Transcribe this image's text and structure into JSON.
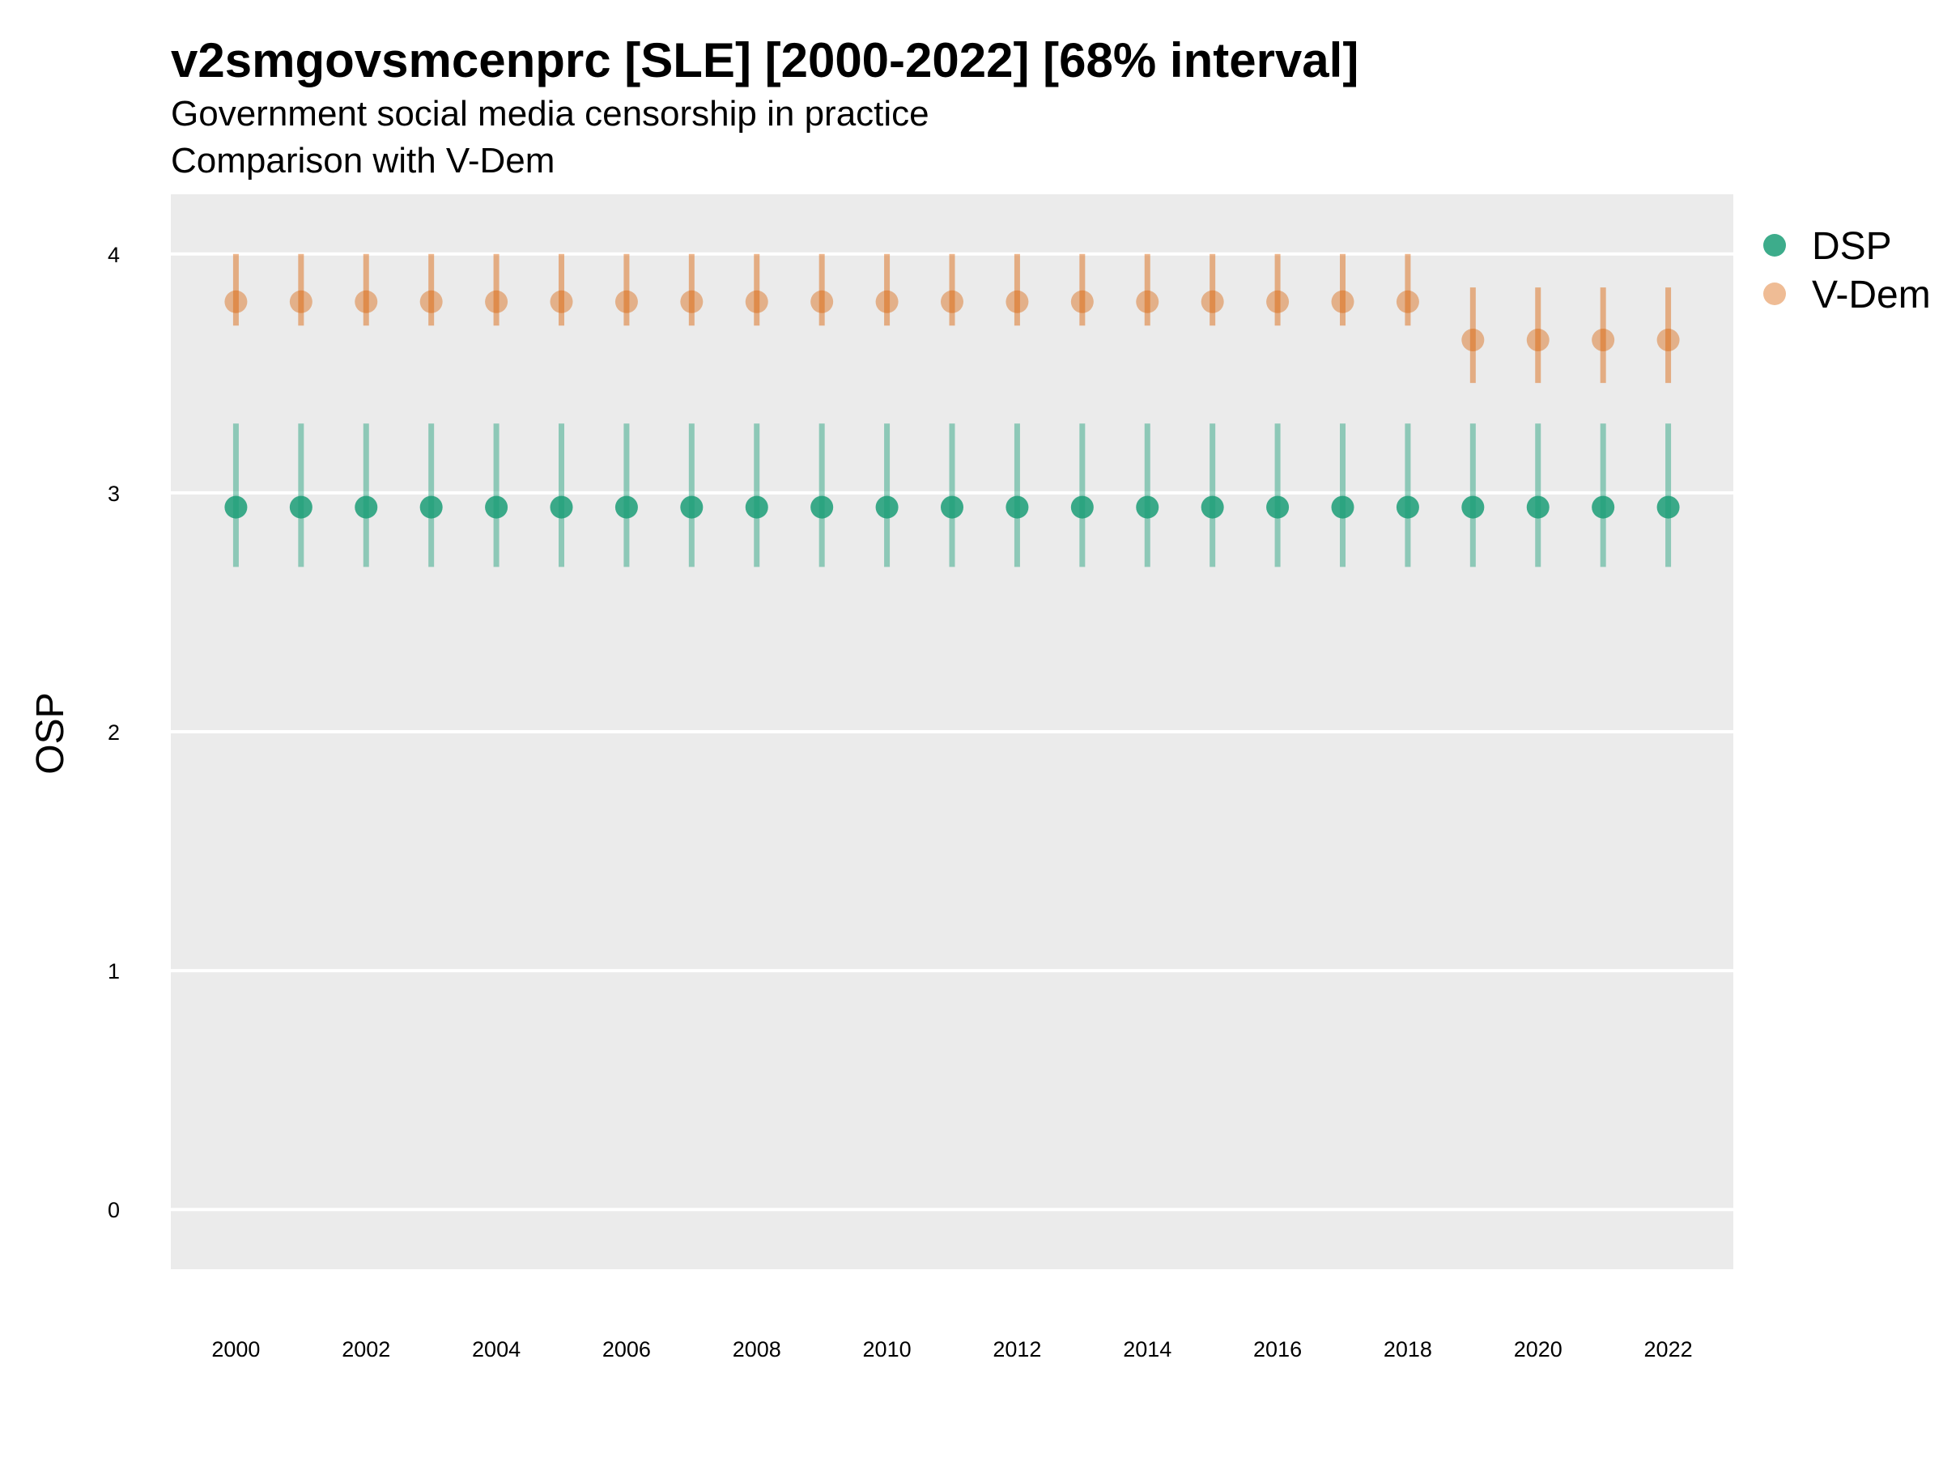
{
  "chart_data": {
    "type": "scatter",
    "title": "v2smgovsmcenprc [SLE] [2000-2022] [68% interval]",
    "subtitle": "Government social media censorship in practice",
    "subtitle2": "Comparison with V-Dem",
    "xlabel": "",
    "ylabel": "OSP",
    "xlim": [
      1999.0,
      2023.0
    ],
    "ylim": [
      -0.25,
      4.25
    ],
    "y_ticks": [
      0,
      1,
      2,
      3,
      4
    ],
    "x_ticks": [
      2000,
      2002,
      2004,
      2006,
      2008,
      2010,
      2012,
      2014,
      2016,
      2018,
      2020,
      2022
    ],
    "grid": true,
    "legend_position": "right",
    "x": [
      2000,
      2001,
      2002,
      2003,
      2004,
      2005,
      2006,
      2007,
      2008,
      2009,
      2010,
      2011,
      2012,
      2013,
      2014,
      2015,
      2016,
      2017,
      2018,
      2019,
      2020,
      2021,
      2022
    ],
    "series": [
      {
        "name": "DSP",
        "color": "#1b9e77",
        "values": [
          2.94,
          2.94,
          2.94,
          2.94,
          2.94,
          2.94,
          2.94,
          2.94,
          2.94,
          2.94,
          2.94,
          2.94,
          2.94,
          2.94,
          2.94,
          2.94,
          2.94,
          2.94,
          2.94,
          2.94,
          2.94,
          2.94,
          2.94
        ],
        "lower": [
          2.69,
          2.69,
          2.69,
          2.69,
          2.69,
          2.69,
          2.69,
          2.69,
          2.69,
          2.69,
          2.69,
          2.69,
          2.69,
          2.69,
          2.69,
          2.69,
          2.69,
          2.69,
          2.69,
          2.69,
          2.69,
          2.69,
          2.69
        ],
        "upper": [
          3.29,
          3.29,
          3.29,
          3.29,
          3.29,
          3.29,
          3.29,
          3.29,
          3.29,
          3.29,
          3.29,
          3.29,
          3.29,
          3.29,
          3.29,
          3.29,
          3.29,
          3.29,
          3.29,
          3.29,
          3.29,
          3.29,
          3.29
        ]
      },
      {
        "name": "V-Dem",
        "color": "#d95f02",
        "values": [
          3.8,
          3.8,
          3.8,
          3.8,
          3.8,
          3.8,
          3.8,
          3.8,
          3.8,
          3.8,
          3.8,
          3.8,
          3.8,
          3.8,
          3.8,
          3.8,
          3.8,
          3.8,
          3.8,
          3.64,
          3.64,
          3.64,
          3.64
        ],
        "lower": [
          3.7,
          3.7,
          3.7,
          3.7,
          3.7,
          3.7,
          3.7,
          3.7,
          3.7,
          3.7,
          3.7,
          3.7,
          3.7,
          3.7,
          3.7,
          3.7,
          3.7,
          3.7,
          3.7,
          3.46,
          3.46,
          3.46,
          3.46
        ],
        "upper": [
          4.0,
          4.0,
          4.0,
          4.0,
          4.0,
          4.0,
          4.0,
          4.0,
          4.0,
          4.0,
          4.0,
          4.0,
          4.0,
          4.0,
          4.0,
          4.0,
          4.0,
          4.0,
          4.0,
          3.86,
          3.86,
          3.86,
          3.86
        ]
      }
    ]
  }
}
